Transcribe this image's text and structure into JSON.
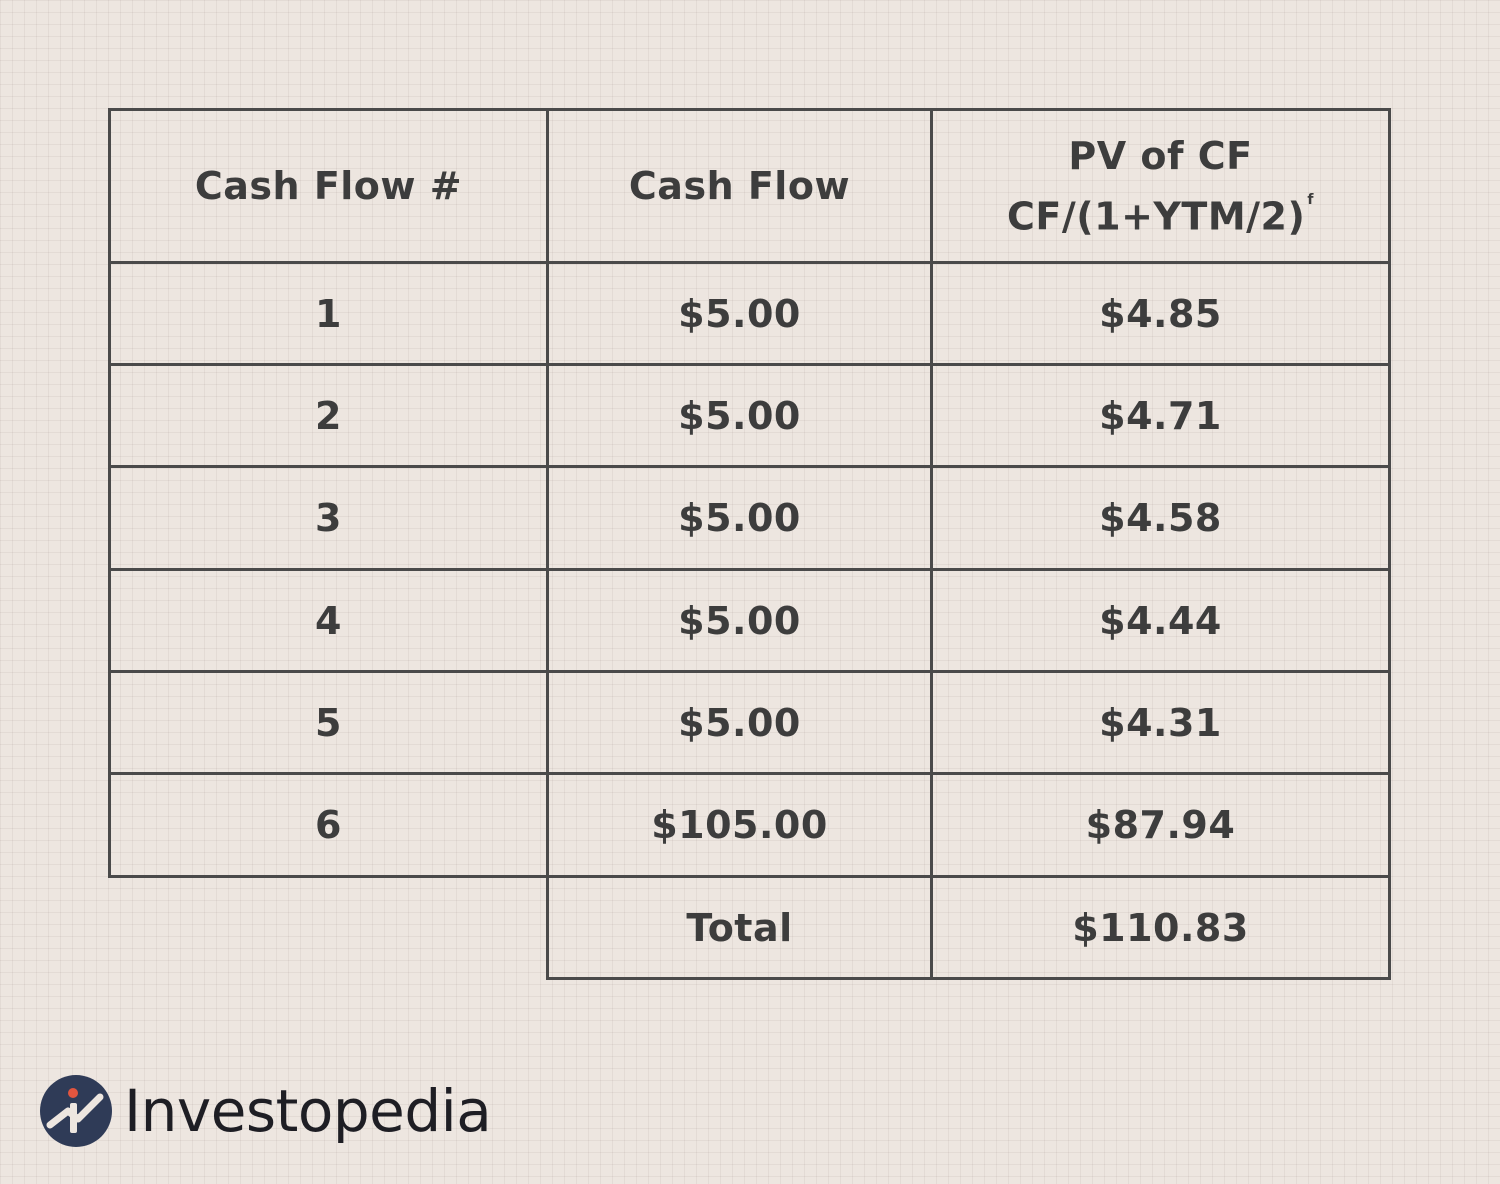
{
  "chart_data": {
    "type": "table",
    "columns": [
      "Cash Flow #",
      "Cash Flow",
      "PV of CF"
    ],
    "pv_formula": "CF/(1+YTM/2)",
    "pv_formula_sup": "f",
    "rows": [
      {
        "n": "1",
        "cf": "$5.00",
        "pv": "$4.85"
      },
      {
        "n": "2",
        "cf": "$5.00",
        "pv": "$4.71"
      },
      {
        "n": "3",
        "cf": "$5.00",
        "pv": "$4.58"
      },
      {
        "n": "4",
        "cf": "$5.00",
        "pv": "$4.44"
      },
      {
        "n": "5",
        "cf": "$5.00",
        "pv": "$4.31"
      },
      {
        "n": "6",
        "cf": "$105.00",
        "pv": "$87.94"
      }
    ],
    "total": {
      "label": "Total",
      "value": "$110.83"
    }
  },
  "brand": {
    "name": "Investopedia",
    "mark_color": "#2f3b57",
    "accent_color": "#e2553f"
  }
}
